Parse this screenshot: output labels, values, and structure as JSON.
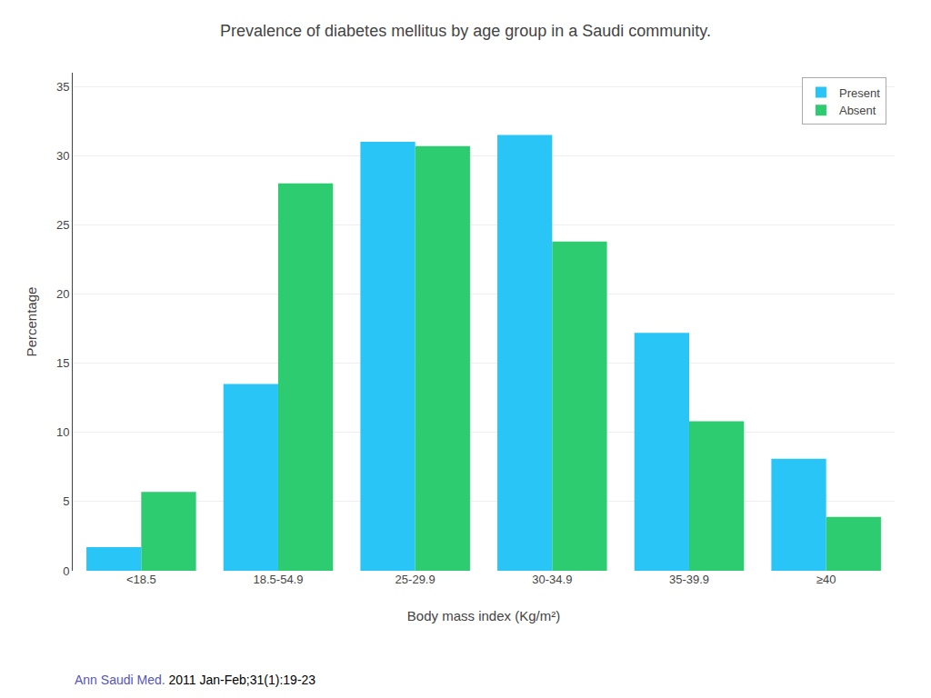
{
  "chart_data": {
    "type": "bar",
    "title": "Prevalence of diabetes mellitus by age group in a Saudi community.",
    "annotations": [
      "Ann Saudi Med.",
      " 2011 Jan-Feb;31(1):19-23"
    ],
    "x_label": "Body mass index (Kg/m²)",
    "y_label": "Percentage",
    "categories": [
      "<18.5",
      "18.5-54.9",
      "25-29.9",
      "30-34.9",
      "35-39.9",
      "≥40"
    ],
    "series": [
      {
        "name": "Present",
        "color": "#29C5F6",
        "values": [
          1.7,
          13.5,
          31.0,
          31.5,
          17.2,
          8.1
        ]
      },
      {
        "name": "Absent",
        "color": "#2ECC71",
        "values": [
          5.7,
          28.0,
          30.7,
          23.8,
          10.8,
          3.9
        ]
      }
    ],
    "ylim": [
      0,
      36
    ],
    "yticks": [
      0,
      5,
      10,
      15,
      20,
      25,
      30,
      35
    ],
    "grid": true,
    "legend": "upper right"
  }
}
